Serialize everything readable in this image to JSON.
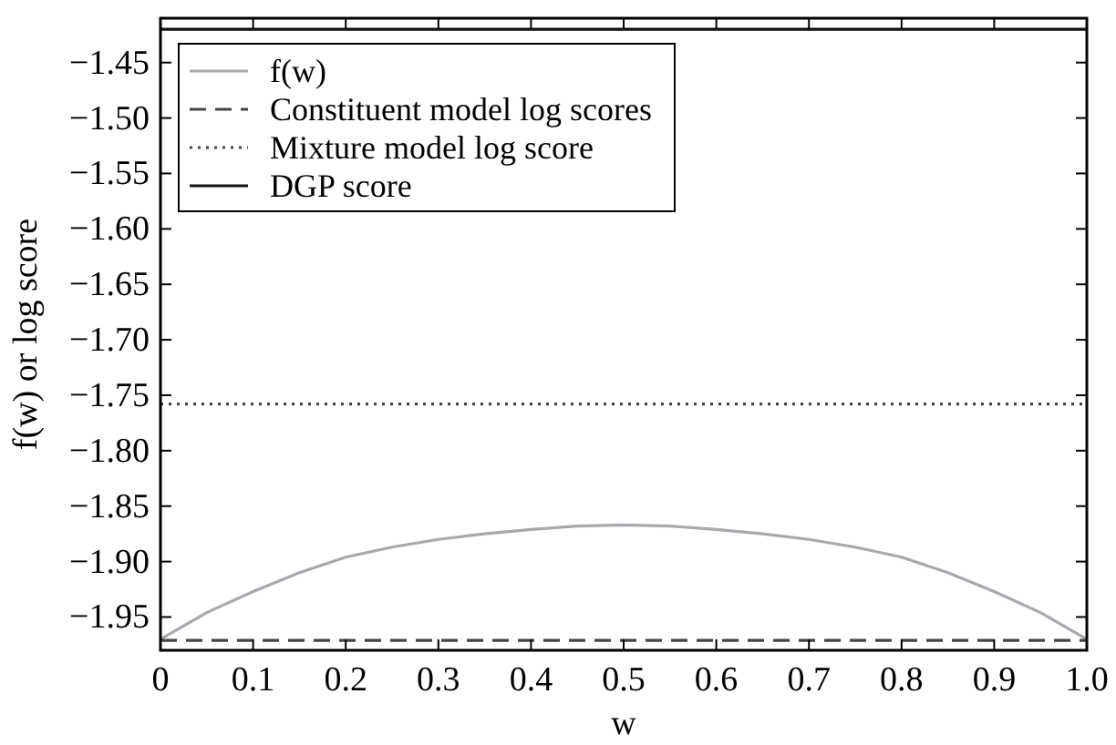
{
  "chart_data": {
    "type": "line",
    "xlabel": "w",
    "ylabel": "f(w) or log score",
    "xlim": [
      0,
      1
    ],
    "ylim": [
      -1.98,
      -1.41
    ],
    "xticks": [
      0,
      0.1,
      0.2,
      0.3,
      0.4,
      0.5,
      0.6,
      0.7,
      0.8,
      0.9,
      {
        "value": 1,
        "label": "1.0"
      }
    ],
    "yticks": [
      {
        "value": -1.95,
        "label": "−1.95"
      },
      {
        "value": -1.9,
        "label": "−1.90"
      },
      {
        "value": -1.85,
        "label": "−1.85"
      },
      {
        "value": -1.8,
        "label": "−1.80"
      },
      {
        "value": -1.75,
        "label": "−1.75"
      },
      {
        "value": -1.7,
        "label": "−1.70"
      },
      {
        "value": -1.65,
        "label": "−1.65"
      },
      {
        "value": -1.6,
        "label": "−1.60"
      },
      {
        "value": -1.55,
        "label": "−1.55"
      },
      {
        "value": -1.5,
        "label": "−1.50"
      },
      {
        "value": -1.45,
        "label": "−1.45"
      }
    ],
    "legend": "top left",
    "grid": false,
    "series": [
      {
        "name": "f(w)",
        "color": "#a8a8ae",
        "line_style": "solid",
        "x": [
          0,
          0.05,
          0.1,
          0.15,
          0.2,
          0.25,
          0.3,
          0.35,
          0.4,
          0.45,
          0.5,
          0.55,
          0.6,
          0.65,
          0.7,
          0.75,
          0.8,
          0.85,
          0.9,
          0.95,
          1
        ],
        "values": [
          -1.97,
          -1.946,
          -1.927,
          -1.91,
          -1.896,
          -1.887,
          -1.88,
          -1.875,
          -1.871,
          -1.868,
          -1.867,
          -1.868,
          -1.871,
          -1.875,
          -1.88,
          -1.887,
          -1.896,
          -1.91,
          -1.927,
          -1.946,
          -1.97
        ]
      },
      {
        "name": "Constituent model log scores",
        "color": "#444444",
        "line_style": "dashed",
        "x": [
          0,
          1
        ],
        "values": [
          -1.971,
          -1.971
        ]
      },
      {
        "name": "Mixture model log score",
        "color": "#444444",
        "line_style": "dotted",
        "x": [
          0,
          1
        ],
        "values": [
          -1.758,
          -1.758
        ]
      },
      {
        "name": "DGP score",
        "color": "#111111",
        "line_style": "solid",
        "x": [
          0,
          1
        ],
        "values": [
          -1.42,
          -1.42
        ]
      }
    ]
  }
}
